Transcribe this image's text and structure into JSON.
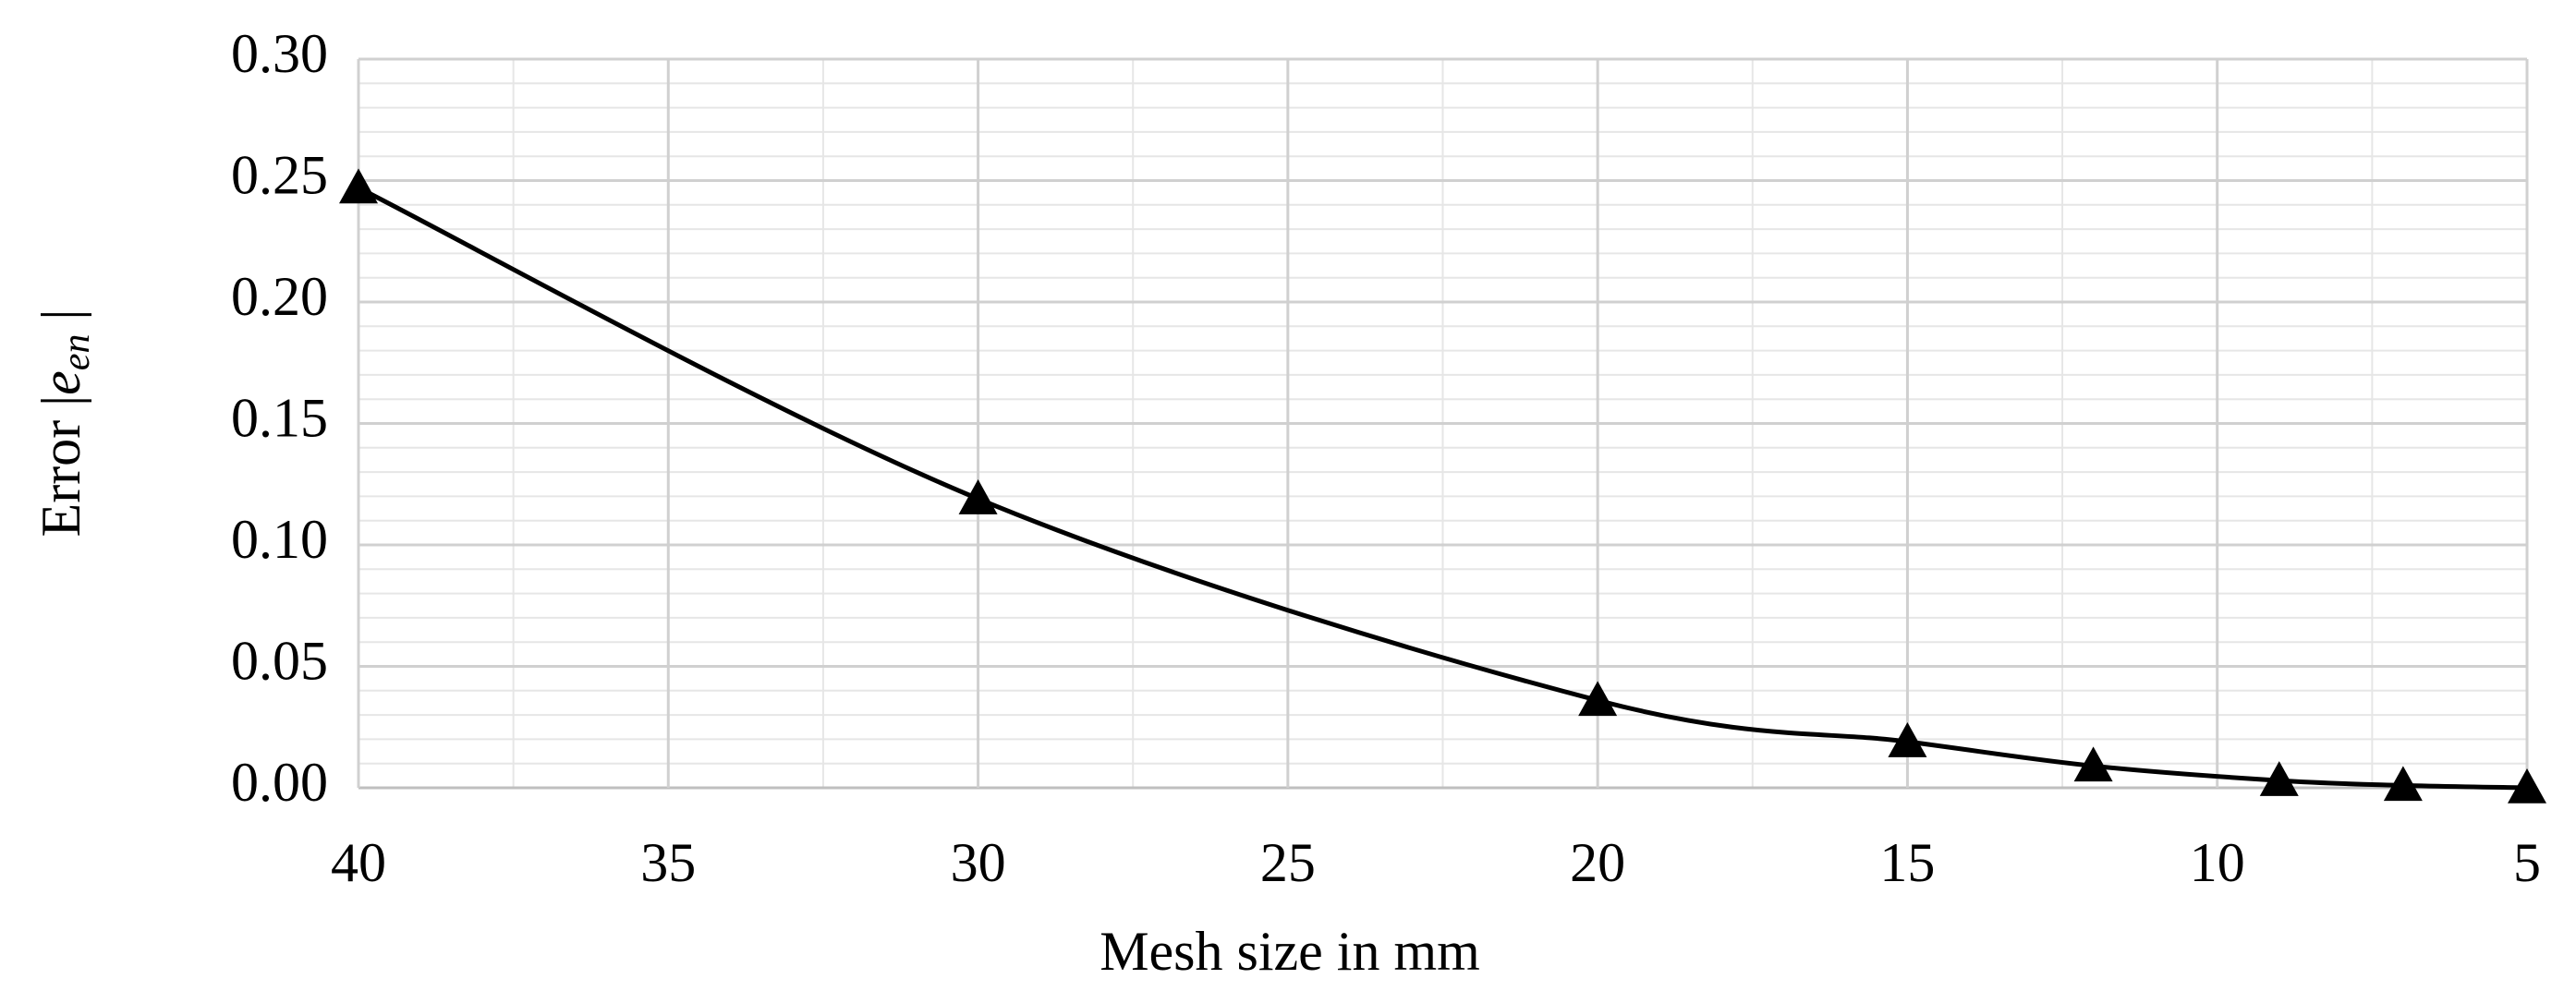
{
  "chart_data": {
    "type": "line",
    "xlabel": "Mesh size in mm",
    "ylabel_parts": [
      "Error |",
      "e",
      "en",
      " |"
    ],
    "x": [
      40,
      30,
      20,
      15,
      12,
      9,
      7,
      5
    ],
    "values": [
      0.247,
      0.119,
      0.036,
      0.019,
      0.009,
      0.003,
      0.001,
      0.0
    ],
    "color": "#000000",
    "marker": "triangle",
    "smooth": true,
    "xlim": [
      40,
      5
    ],
    "xticks": [
      40,
      35,
      30,
      25,
      20,
      15,
      10,
      5
    ],
    "ylim": [
      0,
      0.3
    ],
    "yticks": [
      {
        "value": 0,
        "label": "0.00"
      },
      {
        "value": 0.05,
        "label": "0.05"
      },
      {
        "value": 0.1,
        "label": "0.10"
      },
      {
        "value": 0.15,
        "label": "0.15"
      },
      {
        "value": 0.2,
        "label": "0.20"
      },
      {
        "value": 0.25,
        "label": "0.25"
      },
      {
        "value": 0.3,
        "label": "0.30"
      }
    ],
    "grid": true,
    "minor_grid": true
  }
}
